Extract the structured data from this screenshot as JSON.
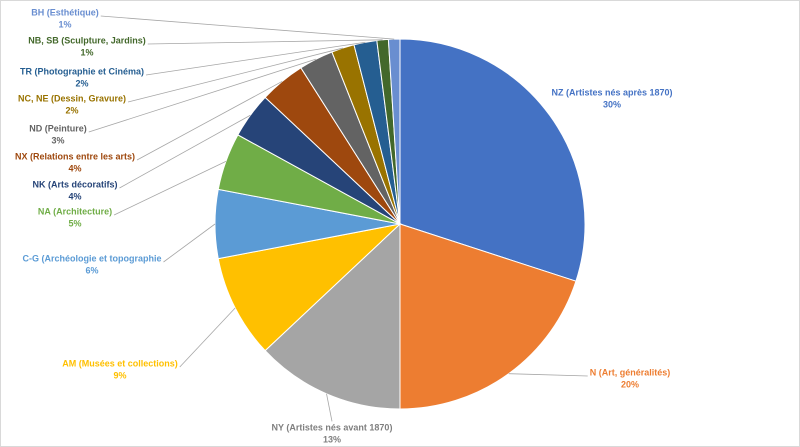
{
  "chart_data": {
    "type": "pie",
    "categories": [
      "NZ (Artistes nés après 1870)",
      "N (Art, généralités)",
      "NY (Artistes nés avant 1870)",
      "AM (Musées et collections)",
      "C-G (Archéologie et topographie",
      "NA (Architecture)",
      "NK (Arts décoratifs)",
      "NX (Relations entre les arts)",
      "ND (Peinture)",
      "NC, NE (Dessin, Gravure)",
      "TR (Photographie et Cinéma)",
      "NB, SB (Sculpture, Jardins)",
      "BH (Esthétique)"
    ],
    "values": [
      30,
      20,
      13,
      9,
      6,
      5,
      4,
      4,
      3,
      2,
      2,
      1,
      1
    ],
    "value_labels": [
      "30%",
      "20%",
      "13%",
      "9%",
      "6%",
      "5%",
      "4%",
      "4%",
      "3%",
      "2%",
      "2%",
      "1%",
      "1%"
    ],
    "colors": [
      "#4472c4",
      "#ed7d31",
      "#a5a5a5",
      "#ffc000",
      "#5b9bd5",
      "#70ad47",
      "#264478",
      "#9e480e",
      "#636363",
      "#997300",
      "#255e91",
      "#43682b",
      "#698ed0"
    ]
  }
}
